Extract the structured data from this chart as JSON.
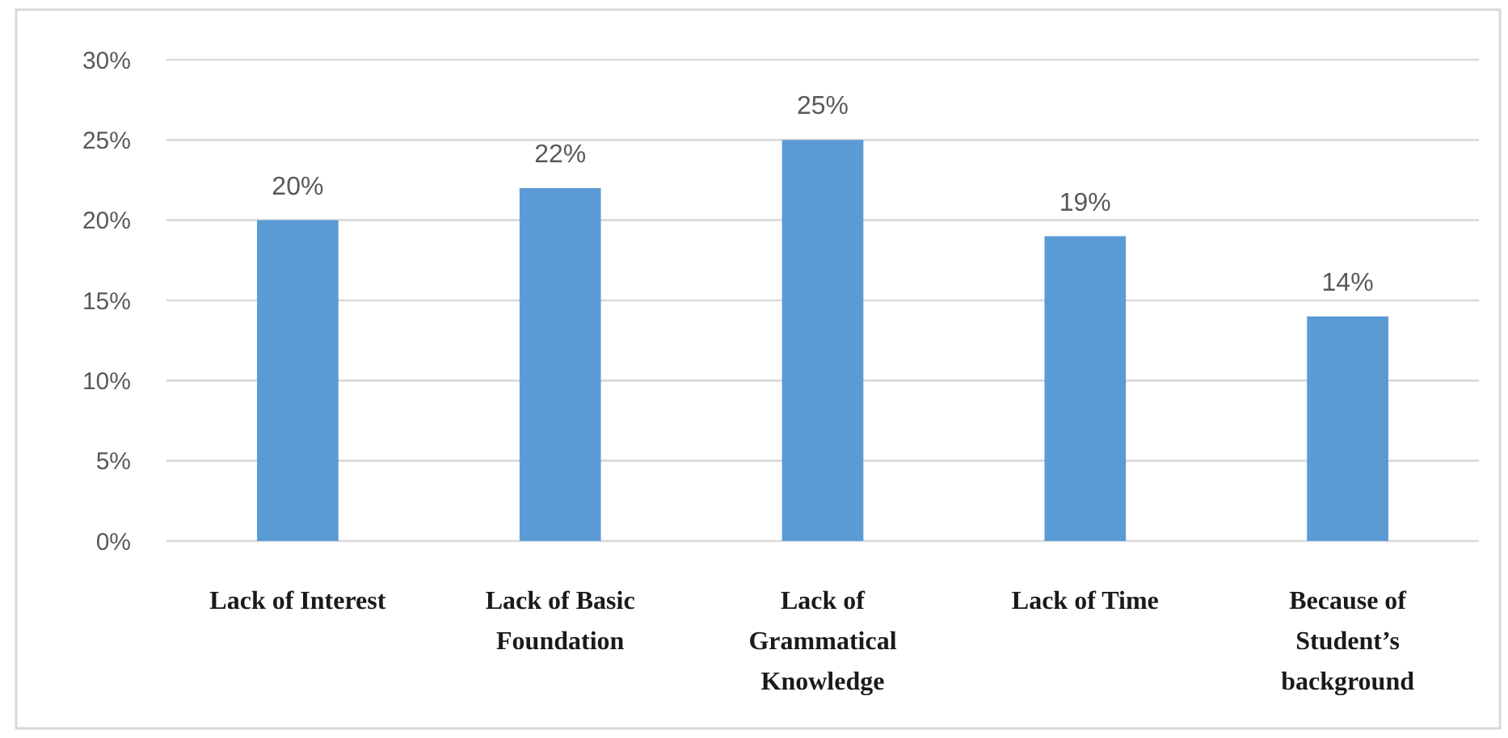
{
  "chart_data": {
    "type": "bar",
    "categories": [
      "Lack of Interest",
      "Lack of Basic Foundation",
      "Lack of Grammatical Knowledge",
      "Lack of Time",
      "Because of Student’s background"
    ],
    "values": [
      20,
      22,
      25,
      19,
      14
    ],
    "color": "#5b9bd5",
    "value_labels": [
      "20%",
      "22%",
      "25%",
      "19%",
      "14%"
    ],
    "ylim": [
      0,
      30
    ],
    "yticks": [
      {
        "value": 0,
        "label": "0%"
      },
      {
        "value": 5,
        "label": "5%"
      },
      {
        "value": 10,
        "label": "10%"
      },
      {
        "value": 15,
        "label": "15%"
      },
      {
        "value": 20,
        "label": "20%"
      },
      {
        "value": 25,
        "label": "25%"
      },
      {
        "value": 30,
        "label": "30%"
      }
    ],
    "grid": "y"
  }
}
